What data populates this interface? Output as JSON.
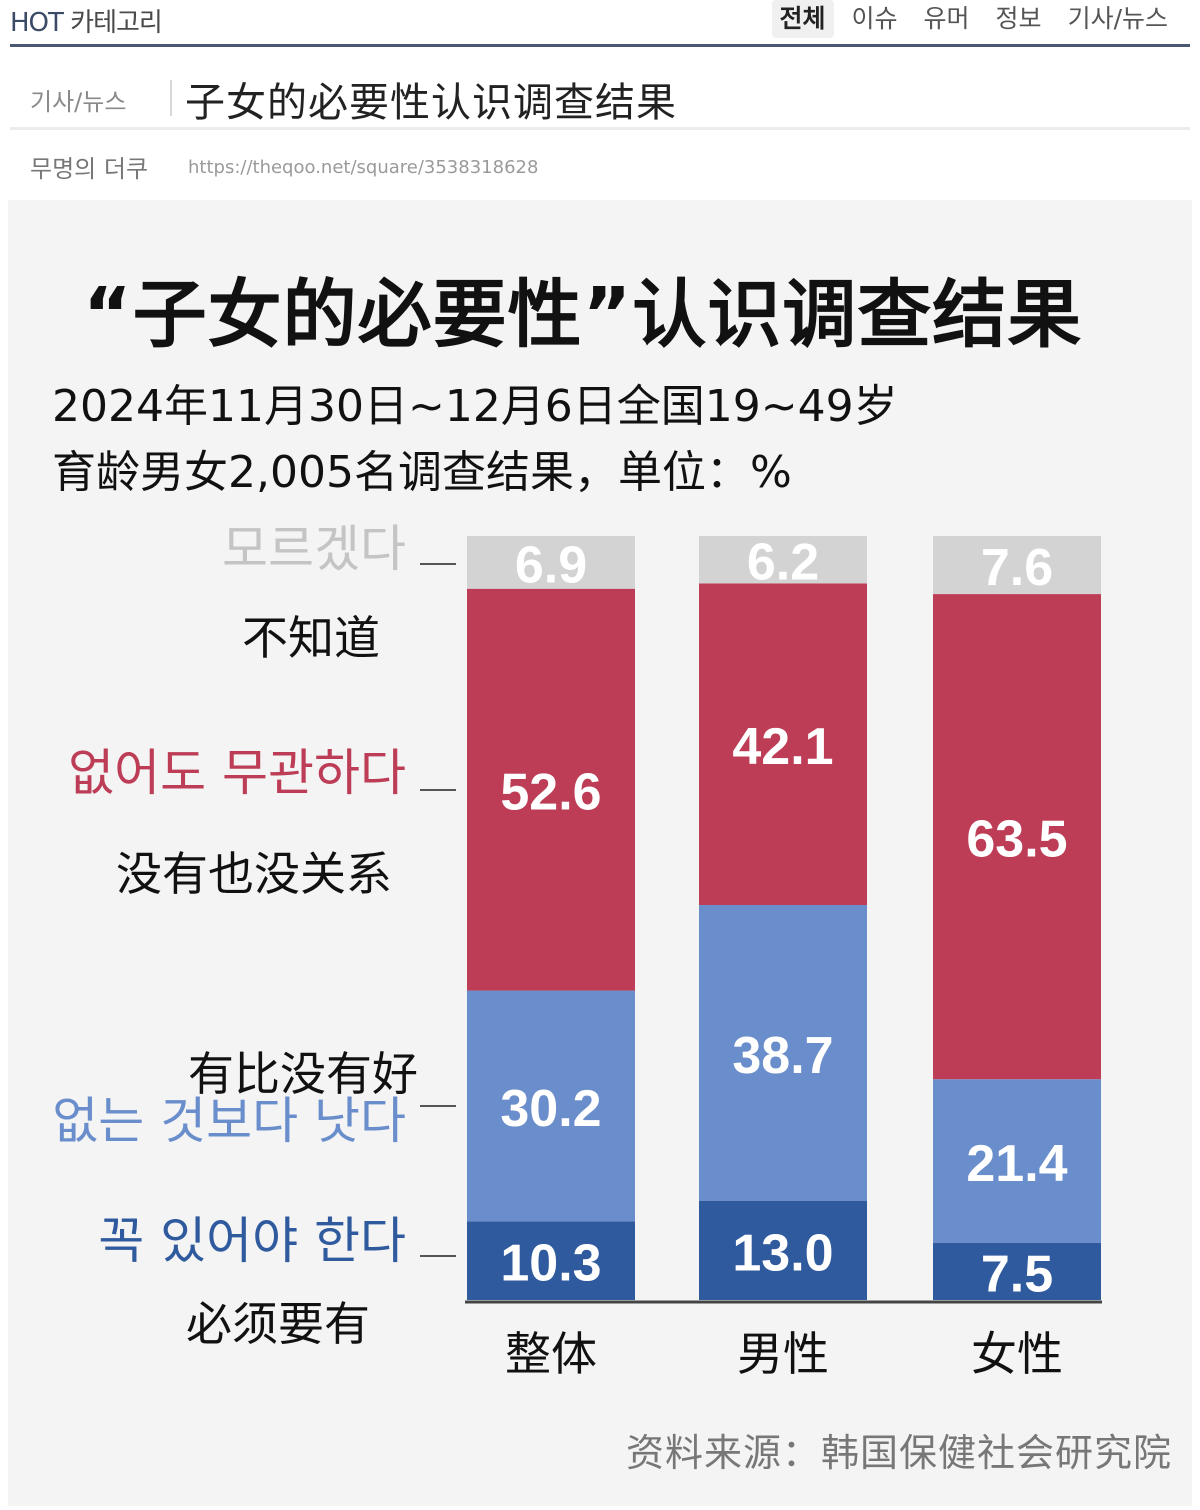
{
  "nav": {
    "brand_hot": "HOT",
    "brand_rest": "카테고리",
    "tabs": [
      {
        "label": "전체",
        "active": true
      },
      {
        "label": "이슈",
        "active": false
      },
      {
        "label": "유머",
        "active": false
      },
      {
        "label": "정보",
        "active": false
      },
      {
        "label": "기사/뉴스",
        "active": false
      }
    ]
  },
  "post": {
    "category": "기사/뉴스",
    "title": "子女的必要性认识调查结果",
    "author": "무명의 더쿠",
    "url": "https://theqoo.net/square/3538318628"
  },
  "infographic": {
    "subtitle_line1": "2024年11月30日~12月6日全国19~49岁",
    "subtitle_line2": "育龄男女2,005名调查结果，单位：%",
    "source": "资料来源：韩国保健社会研究院"
  },
  "chart_data": {
    "type": "bar",
    "stacked": true,
    "title": "“子女的必要性”认识调查结果",
    "categories": [
      "整体",
      "男性",
      "女性"
    ],
    "series": [
      {
        "name": "꼭 있어야 한다",
        "name_zh": "必须要有",
        "color": "#2f5a9e",
        "values": [
          10.3,
          13.0,
          7.5
        ]
      },
      {
        "name": "없는 것보다 낫다",
        "name_zh": "有比没有好",
        "color": "#6a8ecb",
        "values": [
          30.2,
          38.7,
          21.4
        ]
      },
      {
        "name": "없어도 무관하다",
        "name_zh": "没有也没关系",
        "color": "#bd3d56",
        "values": [
          52.6,
          42.1,
          63.5
        ]
      },
      {
        "name": "모르겠다",
        "name_zh": "不知道",
        "color": "#d3d3d3",
        "values": [
          6.9,
          6.2,
          7.6
        ]
      }
    ],
    "label_colors": [
      "#2f5a9e",
      "#6a8ecb",
      "#bd3d56",
      "#c4c4c4"
    ],
    "ylim": [
      0,
      100
    ]
  }
}
